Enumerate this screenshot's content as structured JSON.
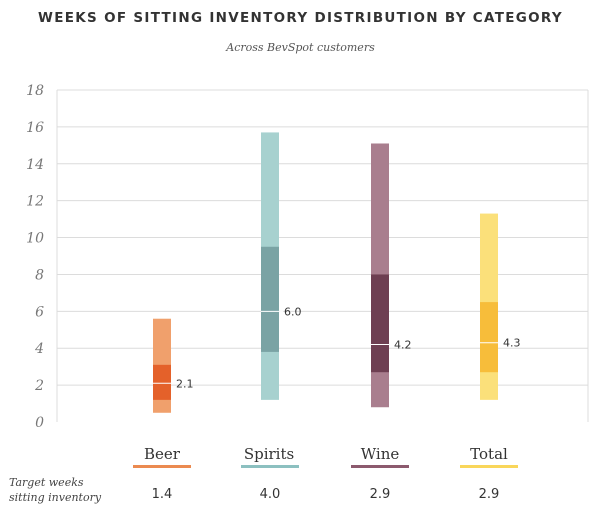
{
  "chart_data": {
    "type": "bar",
    "subtype": "range-box",
    "title": "WEEKS OF SITTING INVENTORY DISTRIBUTION BY CATEGORY",
    "subtitle": "Across BevSpot customers",
    "ylim": [
      0,
      18
    ],
    "yticks": [
      0,
      2,
      4,
      6,
      8,
      10,
      12,
      14,
      16,
      18
    ],
    "grid": true,
    "categories": [
      "Beer",
      "Spirits",
      "Wine",
      "Total"
    ],
    "series": [
      {
        "name": "Beer",
        "min": 0.5,
        "q1": 1.2,
        "median": 2.1,
        "q3": 3.1,
        "max": 5.6,
        "color_light": "#f0a06c",
        "color_dark": "#e4612a",
        "legend_color": "#eb8a50"
      },
      {
        "name": "Spirits",
        "min": 1.2,
        "q1": 3.8,
        "median": 6.0,
        "q3": 9.5,
        "max": 15.7,
        "color_light": "#a7d1cf",
        "color_dark": "#7aa3a4",
        "legend_color": "#8cc0c0"
      },
      {
        "name": "Wine",
        "min": 0.8,
        "q1": 2.7,
        "median": 4.2,
        "q3": 8.0,
        "max": 15.1,
        "color_light": "#a97e8e",
        "color_dark": "#6e3f52",
        "legend_color": "#8c5a6e"
      },
      {
        "name": "Total",
        "min": 1.2,
        "q1": 2.7,
        "median": 4.3,
        "q3": 6.5,
        "max": 11.3,
        "color_light": "#fbe07a",
        "color_dark": "#f7bd3a",
        "legend_color": "#f9d65a"
      }
    ],
    "median_labels": [
      "2.1",
      "6.0",
      "4.2",
      "4.3"
    ],
    "target_label_line1": "Target weeks",
    "target_label_line2": "sitting inventory",
    "target_values": [
      "1.4",
      "4.0",
      "2.9",
      "2.9"
    ]
  }
}
